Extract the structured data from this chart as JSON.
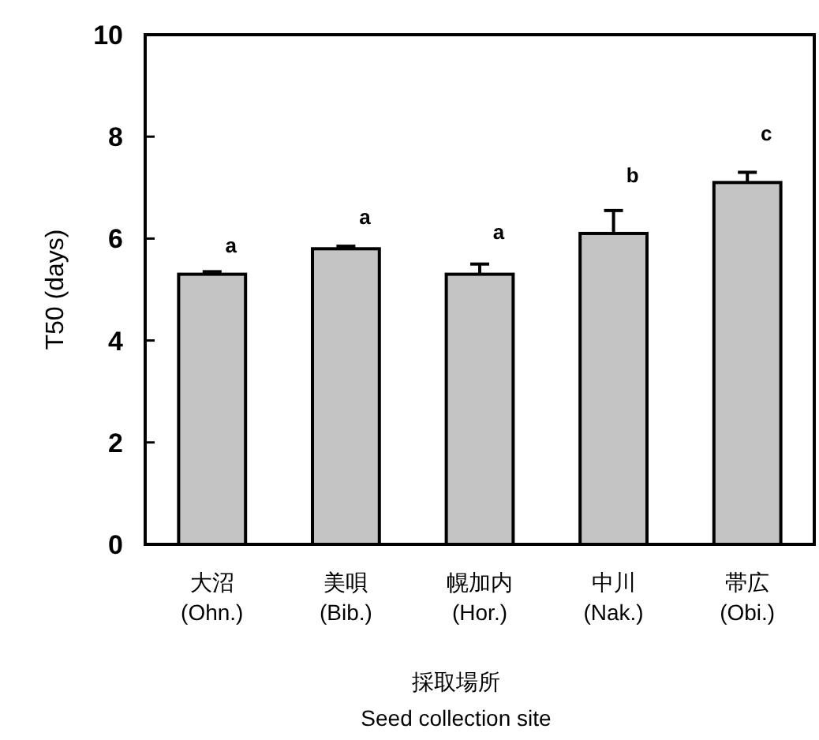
{
  "chart_data": {
    "type": "bar",
    "categories": [
      "大沼\n(Ohn.)",
      "美唄\n(Bib.)",
      "幌加内\n(Hor.)",
      "中川\n(Nak.)",
      "帯広\n(Obi.)"
    ],
    "values": [
      5.3,
      5.8,
      5.3,
      6.1,
      7.1
    ],
    "errors": [
      0.05,
      0.05,
      0.2,
      0.45,
      0.2
    ],
    "color": "#c4c4c4",
    "xlabel": "採取場所\nSeed collection site",
    "ylabel": "T50 (days)",
    "ylim": [
      0,
      10
    ],
    "yticks": [
      0,
      2,
      4,
      6,
      8,
      10
    ],
    "grid": false,
    "annotations": [
      "a",
      "a",
      "a",
      "b",
      "c"
    ]
  }
}
